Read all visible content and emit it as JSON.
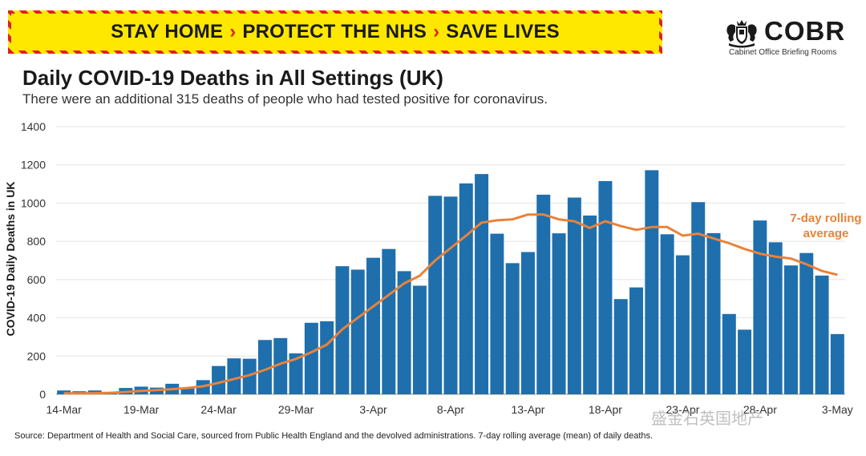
{
  "banner": {
    "part1": "STAY HOME",
    "part2": "PROTECT THE NHS",
    "part3": "SAVE LIVES",
    "separator": "›"
  },
  "logo": {
    "name": "COBR",
    "subtitle": "Cabinet Office Briefing Rooms",
    "icon": "royal-crest-icon"
  },
  "title": "Daily COVID-19 Deaths in All Settings (UK)",
  "subtitle": "There were an additional 315 deaths of people who had tested positive for coronavirus.",
  "source": "Source: Department of Health and Social Care, sourced from Public Health England and the devolved administrations. 7-day rolling average (mean) of daily deaths.",
  "watermark": "盛金石英国地产",
  "colors": {
    "bar": "#1f6fad",
    "average": "#e8833a",
    "banner_bg": "#ffe800",
    "banner_accent": "#e0201b"
  },
  "chart_data": {
    "type": "bar",
    "title": "Daily COVID-19 Deaths in All Settings (UK)",
    "xlabel": "",
    "ylabel": "COVID-19 Daily Deaths in UK",
    "ylim": [
      0,
      1400
    ],
    "yticks": [
      0,
      200,
      400,
      600,
      800,
      1000,
      1200,
      1400
    ],
    "grid": true,
    "x_tick_labels": [
      "14-Mar",
      "19-Mar",
      "24-Mar",
      "29-Mar",
      "3-Apr",
      "8-Apr",
      "13-Apr",
      "18-Apr",
      "23-Apr",
      "28-Apr",
      "3-May"
    ],
    "x_tick_indices": [
      0,
      5,
      10,
      15,
      20,
      25,
      30,
      35,
      40,
      45,
      50
    ],
    "series": [
      {
        "type": "bar",
        "values": [
          20,
          16,
          20,
          12,
          33,
          40,
          35,
          55,
          33,
          74,
          148,
          188,
          186,
          284,
          294,
          214,
          374,
          382,
          670,
          652,
          714,
          760,
          644,
          568,
          1038,
          1034,
          1103,
          1152,
          840,
          686,
          744,
          1044,
          842,
          1029,
          935,
          1115,
          498,
          559,
          1172,
          837,
          727,
          1005,
          843,
          420,
          338,
          909,
          795,
          674,
          739,
          621,
          315
        ]
      },
      {
        "type": "line",
        "name": "7-day rolling average",
        "values": [
          5,
          5,
          6,
          8,
          12,
          18,
          22,
          27,
          33,
          42,
          60,
          80,
          100,
          128,
          160,
          185,
          220,
          260,
          340,
          400,
          460,
          520,
          580,
          620,
          700,
          765,
          830,
          898,
          910,
          915,
          940,
          940,
          915,
          905,
          870,
          905,
          880,
          860,
          875,
          875,
          830,
          840,
          815,
          790,
          760,
          735,
          720,
          710,
          680,
          645,
          625
        ]
      }
    ],
    "annotation": "7-day rolling average"
  }
}
